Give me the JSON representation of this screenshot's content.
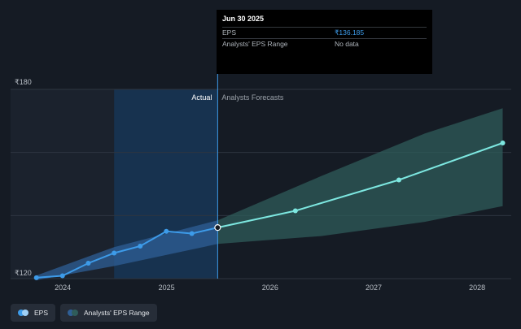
{
  "tooltip": {
    "date": "Jun 30 2025",
    "rows": [
      {
        "name": "EPS",
        "value": "₹136.185"
      },
      {
        "name": "Analysts' EPS Range",
        "value": "No data"
      }
    ]
  },
  "regions": {
    "actual_label": "Actual",
    "forecast_label": "Analysts Forecasts"
  },
  "legend": {
    "eps_label": "EPS",
    "range_label": "Analysts' EPS Range"
  },
  "colors": {
    "eps_line": "#3d9be9",
    "forecast_line": "#7de7e0",
    "forecast_band": "#2f5c5a",
    "actual_band": "#2f5f96",
    "highlight": "#17324f",
    "background": "#151b24"
  },
  "chart_data": {
    "type": "line",
    "x_ticks": [
      "2024",
      "2025",
      "2026",
      "2027",
      "2028"
    ],
    "y_ticks": [
      "₹180",
      "₹120"
    ],
    "ylim": [
      120,
      180
    ],
    "grid": true,
    "series": [
      {
        "name": "EPS",
        "x": [
          "2023-09-30",
          "2023-12-31",
          "2024-03-31",
          "2024-06-30",
          "2024-09-30",
          "2024-12-31",
          "2025-03-31",
          "2025-06-30"
        ],
        "y": [
          120.3,
          120.9,
          124.9,
          128.1,
          130.3,
          135.0,
          134.3,
          136.185
        ]
      },
      {
        "name": "Analysts Forecasts",
        "x": [
          "2025-06-30",
          "2026-03-31",
          "2027-03-31",
          "2028-03-31"
        ],
        "y": [
          136.185,
          141.5,
          151.3,
          163.0
        ]
      }
    ],
    "range_band": {
      "x": [
        "2023-09-30",
        "2024-06-30",
        "2025-06-30",
        "2026-06-30",
        "2027-06-30",
        "2028-03-31"
      ],
      "low": [
        119.5,
        124.0,
        131.0,
        133.5,
        138.0,
        143.0
      ],
      "high": [
        121.0,
        130.0,
        138.5,
        152.5,
        166.0,
        174.0
      ]
    }
  }
}
